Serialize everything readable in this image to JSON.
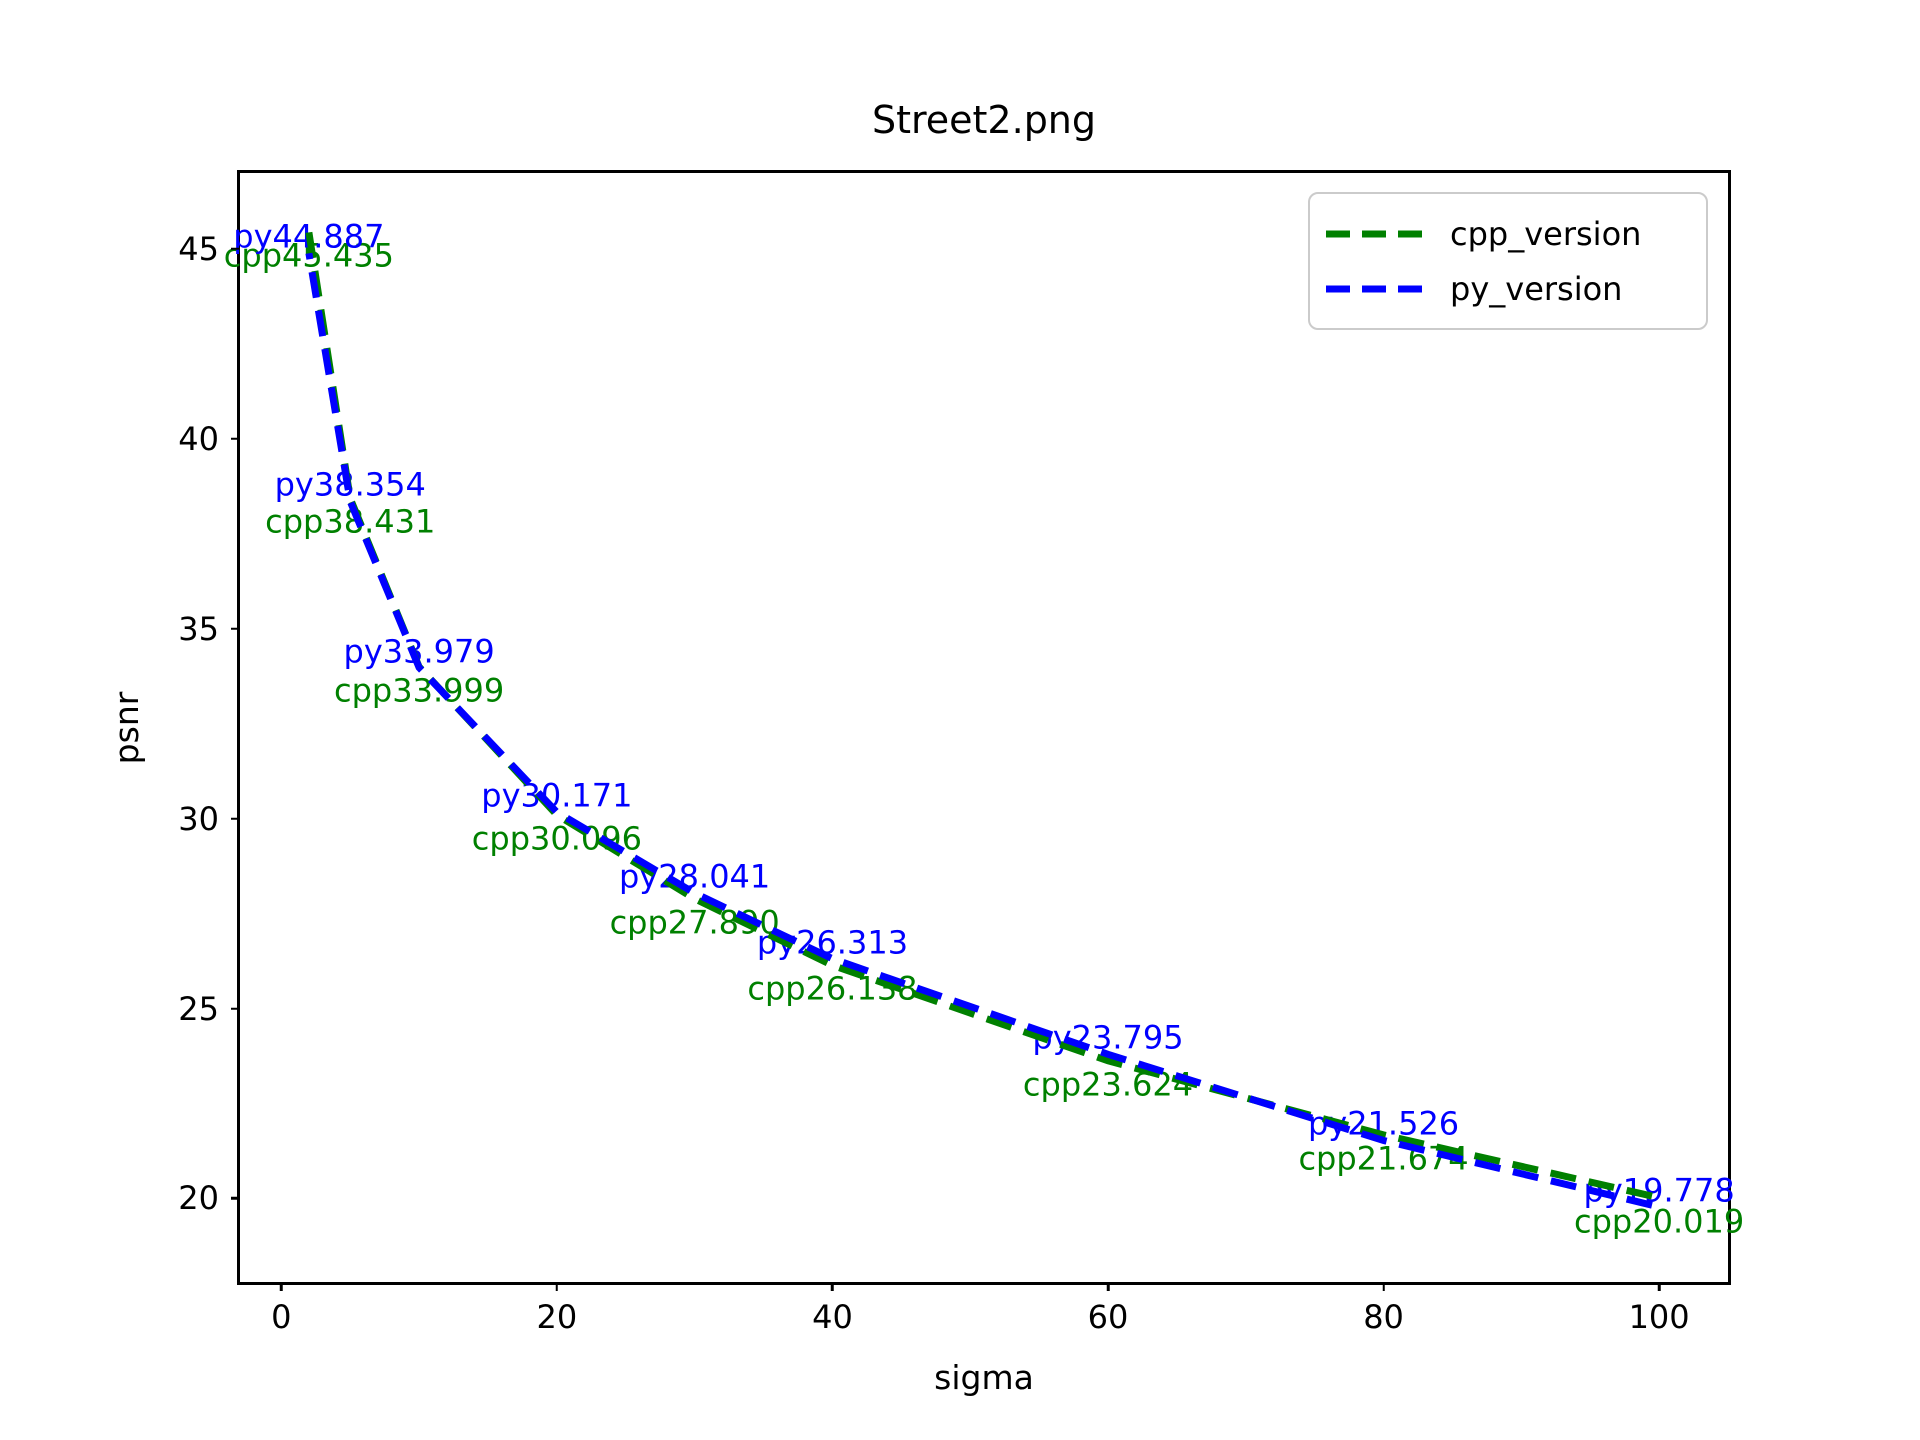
{
  "title": "Street2.png",
  "axes": {
    "xlabel": "sigma",
    "ylabel": "psnr",
    "xtick_labels": [
      "0",
      "20",
      "40",
      "60",
      "80",
      "100"
    ],
    "ytick_labels": [
      "20",
      "25",
      "30",
      "35",
      "40",
      "45"
    ]
  },
  "legend": {
    "items": [
      {
        "label": "cpp_version",
        "color": "#008000"
      },
      {
        "label": "py_version",
        "color": "#0000ff"
      }
    ]
  },
  "chart_data": {
    "type": "line",
    "title": "Street2.png",
    "xlabel": "sigma",
    "ylabel": "psnr",
    "x": [
      2,
      5,
      10,
      20,
      30,
      40,
      60,
      80,
      100
    ],
    "series": [
      {
        "name": "cpp_version",
        "color": "#008000",
        "linestyle": "dashed",
        "values": [
          45.435,
          38.431,
          33.999,
          30.096,
          27.89,
          26.138,
          23.624,
          21.674,
          20.019
        ],
        "point_labels": [
          "cpp45.435",
          "cpp38.431",
          "cpp33.999",
          "cpp30.096",
          "cpp27.890",
          "cpp26.138",
          "cpp23.624",
          "cpp21.674",
          "cpp20.019"
        ]
      },
      {
        "name": "py_version",
        "color": "#0000ff",
        "linestyle": "dashed",
        "values": [
          44.887,
          38.354,
          33.979,
          30.171,
          28.041,
          26.313,
          23.795,
          21.526,
          19.778
        ],
        "point_labels": [
          "py44.887",
          "py38.354",
          "py33.979",
          "py30.171",
          "py28.041",
          "py26.313",
          "py23.795",
          "py21.526",
          "py19.778"
        ]
      }
    ],
    "xticks": [
      0,
      20,
      40,
      60,
      80,
      100
    ],
    "yticks": [
      20,
      25,
      30,
      35,
      40,
      45
    ],
    "xlim": [
      -3.0,
      105.0
    ],
    "ylim": [
      17.8,
      47.0
    ],
    "grid": false,
    "legend_position": "upper right"
  }
}
